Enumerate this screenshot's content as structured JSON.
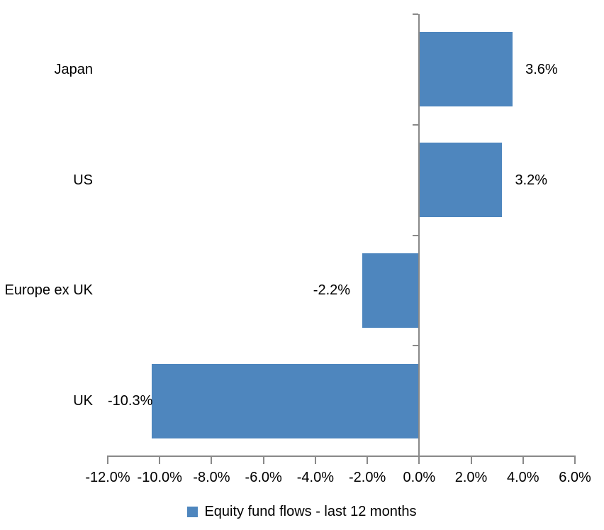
{
  "chart_data": {
    "type": "bar",
    "orientation": "horizontal",
    "title": "",
    "xlabel": "",
    "ylabel": "",
    "categories": [
      "Japan",
      "US",
      "Europe ex UK",
      "UK"
    ],
    "values": [
      3.6,
      3.2,
      -2.2,
      -10.3
    ],
    "data_labels": [
      "3.6%",
      "3.2%",
      "-2.2%",
      "-10.3%"
    ],
    "series_name": "Equity fund flows - last 12 months",
    "xlim": [
      -12,
      6
    ],
    "x_ticks": [
      -12,
      -10,
      -8,
      -6,
      -4,
      -2,
      0,
      2,
      4,
      6
    ],
    "x_tick_labels": [
      "-12.0%",
      "-10.0%",
      "-8.0%",
      "-6.0%",
      "-4.0%",
      "-2.0%",
      "0.0%",
      "2.0%",
      "4.0%",
      "6.0%"
    ],
    "grid": false,
    "legend_position": "bottom",
    "bar_color": "#4e86be",
    "axis_color": "#898989",
    "text_color": "#000000"
  },
  "legend": {
    "label": "Equity fund flows - last 12 months"
  }
}
